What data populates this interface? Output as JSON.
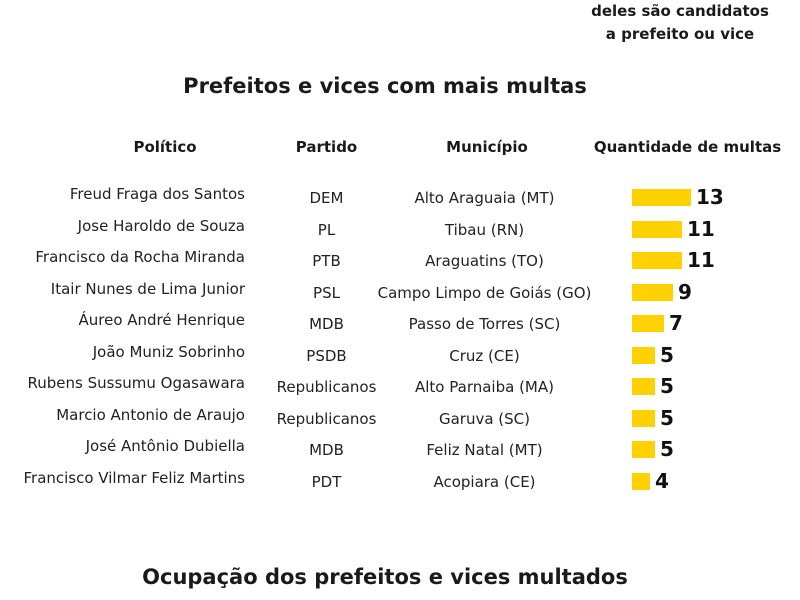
{
  "top_note": {
    "line1": "deles são candidatos",
    "line2": "a prefeito ou vice"
  },
  "chart_title": "Prefeitos e vices com mais multas",
  "next_section_title": "Ocupação dos prefeitos e vices multados",
  "headers": {
    "politico": "Político",
    "partido": "Partido",
    "municipio": "Município",
    "quantidade": "Quantidade de multas"
  },
  "colors": {
    "bar": "#ffd100",
    "text": "#1a1a1a"
  },
  "chart_data": {
    "type": "bar",
    "title": "Prefeitos e vices com mais multas",
    "xlabel": "",
    "ylabel": "Quantidade de multas",
    "orientation": "horizontal",
    "ylim": [
      0,
      13
    ],
    "grid": false,
    "categories": [
      "Freud Fraga dos Santos",
      "Jose Haroldo de Souza",
      "Francisco da Rocha Miranda",
      "Itair Nunes de Lima Junior",
      "Áureo André Henrique",
      "João Muniz Sobrinho",
      "Rubens Sussumu Ogasawara",
      "Marcio Antonio de Araujo",
      "José Antônio Dubiella",
      "Francisco Vilmar Feliz Martins"
    ],
    "values": [
      13,
      11,
      11,
      9,
      7,
      5,
      5,
      5,
      5,
      4
    ],
    "rows": [
      {
        "politico": "Freud Fraga dos Santos",
        "partido": "DEM",
        "municipio": "Alto Araguaia (MT)",
        "multas": 13
      },
      {
        "politico": "Jose Haroldo de Souza",
        "partido": "PL",
        "municipio": "Tibau (RN)",
        "multas": 11
      },
      {
        "politico": "Francisco da Rocha Miranda",
        "partido": "PTB",
        "municipio": "Araguatins (TO)",
        "multas": 11
      },
      {
        "politico": "Itair Nunes de Lima Junior",
        "partido": "PSL",
        "municipio": "Campo Limpo de Goiás (GO)",
        "multas": 9
      },
      {
        "politico": "Áureo André Henrique",
        "partido": "MDB",
        "municipio": "Passo de Torres (SC)",
        "multas": 7
      },
      {
        "politico": "João Muniz Sobrinho",
        "partido": "PSDB",
        "municipio": "Cruz (CE)",
        "multas": 5
      },
      {
        "politico": "Rubens Sussumu Ogasawara",
        "partido": "Republicanos",
        "municipio": "Alto Parnaiba (MA)",
        "multas": 5
      },
      {
        "politico": "Marcio Antonio de Araujo",
        "partido": "Republicanos",
        "municipio": "Garuva (SC)",
        "multas": 5
      },
      {
        "politico": "José Antônio Dubiella",
        "partido": "MDB",
        "municipio": "Feliz Natal (MT)",
        "multas": 5
      },
      {
        "politico": "Francisco Vilmar Feliz Martins",
        "partido": "PDT",
        "municipio": "Acopiara (CE)",
        "multas": 4
      }
    ]
  }
}
